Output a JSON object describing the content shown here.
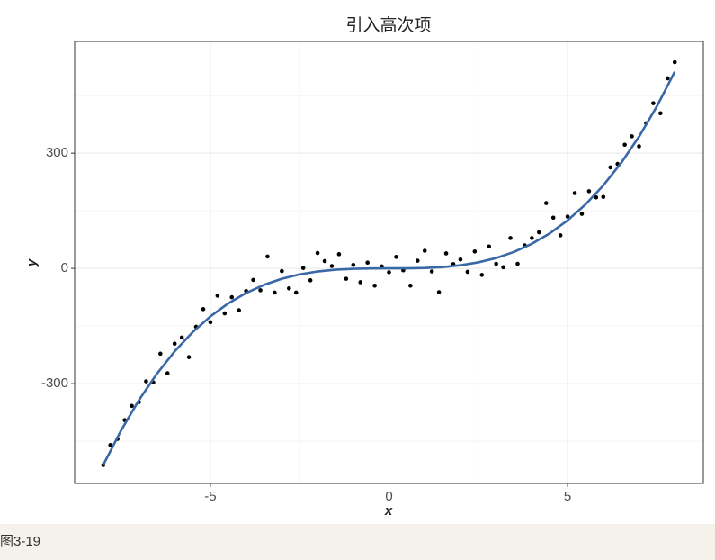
{
  "chart_data": {
    "type": "scatter",
    "title": "引入高次项",
    "x_label": "x",
    "y_label": "y",
    "xlim": [
      -8.8,
      8.8
    ],
    "ylim": [
      -560,
      591
    ],
    "xticks": [
      -5,
      0,
      5
    ],
    "yticks": [
      -300,
      0,
      300
    ],
    "grid": true,
    "minor_grid": true,
    "series": [
      {
        "type": "scatter",
        "color": "#000000",
        "x": [
          -8.0,
          -7.8,
          -7.6,
          -7.4,
          -7.2,
          -7.0,
          -6.8,
          -6.6,
          -6.4,
          -6.2,
          -6.0,
          -5.8,
          -5.6,
          -5.4,
          -5.2,
          -5.0,
          -4.8,
          -4.6,
          -4.4,
          -4.2,
          -4.0,
          -3.8,
          -3.6,
          -3.4,
          -3.2,
          -3.0,
          -2.8,
          -2.6,
          -2.4,
          -2.2,
          -2.0,
          -1.8,
          -1.6,
          -1.4,
          -1.2,
          -1.0,
          -0.8,
          -0.6,
          -0.4,
          -0.2,
          0,
          0.2,
          0.4,
          0.6,
          0.8,
          1.0,
          1.2,
          1.4,
          1.6,
          1.8,
          2.0,
          2.2,
          2.4,
          2.6,
          2.8,
          3.0,
          3.2,
          3.4,
          3.6,
          3.8,
          4.0,
          4.2,
          4.4,
          4.6,
          4.8,
          5.0,
          5.2,
          5.4,
          5.6,
          5.8,
          6.0,
          6.2,
          6.4,
          6.6,
          6.8,
          7.0,
          7.2,
          7.4,
          7.6,
          7.8,
          8.0
        ],
        "values": [
          -512,
          -460,
          -444,
          -395,
          -358,
          -348,
          -294,
          -297,
          -222,
          -273,
          -196,
          -180,
          -231,
          -152,
          -106,
          -140,
          -71,
          -117,
          -75,
          -109,
          -59,
          -30,
          -57,
          31,
          -63,
          -7,
          -52,
          -63,
          1,
          -31,
          40,
          19,
          6,
          37,
          -27,
          9,
          -36,
          15,
          -45,
          5,
          -10,
          30,
          -5,
          -45,
          20,
          46,
          -8,
          -62,
          39,
          11,
          23,
          -9,
          44,
          -17,
          57,
          12,
          3,
          79,
          12,
          60,
          79,
          94,
          170,
          132,
          86,
          135,
          196,
          142,
          201,
          185,
          186,
          263,
          272,
          322,
          344,
          318,
          378,
          430,
          404,
          495,
          537
        ]
      },
      {
        "type": "line",
        "color": "#3a68a6",
        "x": [
          -8,
          -7.5,
          -7,
          -6.5,
          -6,
          -5.5,
          -5,
          -4.5,
          -4,
          -3.5,
          -3,
          -2.5,
          -2,
          -1.5,
          -1,
          -0.5,
          0,
          0.5,
          1,
          1.5,
          2,
          2.5,
          3,
          3.5,
          4,
          4.5,
          5,
          5.5,
          6,
          6.5,
          7,
          7.5,
          8
        ],
        "values": [
          -512,
          -421.875,
          -343,
          -274.625,
          -216,
          -166.375,
          -125,
          -91.125,
          -64,
          -42.875,
          -27,
          -15.625,
          -8,
          -3.375,
          -1,
          -0.125,
          0,
          0.125,
          1,
          3.375,
          8,
          15.625,
          27,
          42.875,
          64,
          91.125,
          125,
          166.375,
          216,
          274.625,
          343,
          421.875,
          512
        ]
      }
    ]
  },
  "caption": "图3-19"
}
